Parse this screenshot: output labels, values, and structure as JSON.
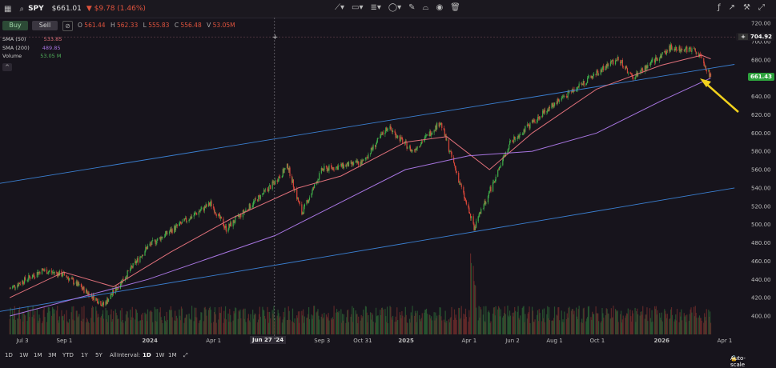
{
  "header": {
    "ticker": "SPY",
    "price": "$661.01",
    "change": "▼ $9.78 (1.46%)"
  },
  "trade": {
    "buy_label": "Buy",
    "sell_label": "Sell"
  },
  "ohlc": {
    "o_label": "O",
    "o": "561.44",
    "h_label": "H",
    "h": "562.33",
    "l_label": "L",
    "l": "555.83",
    "c_label": "C",
    "c": "556.48",
    "v_label": "V",
    "v": "53.05M"
  },
  "legend": [
    {
      "name": "SMA (50)",
      "value": "533.85",
      "color": "#e0707a"
    },
    {
      "name": "SMA (200)",
      "value": "489.85",
      "color": "#a775e0"
    },
    {
      "name": "Volume",
      "value": "53.05 M",
      "color": "#52b35c"
    }
  ],
  "price_axis": {
    "ticks": [
      "720.00",
      "700.00",
      "680.00",
      "660.00",
      "640.00",
      "620.00",
      "600.00",
      "580.00",
      "560.00",
      "540.00",
      "520.00",
      "500.00",
      "480.00",
      "460.00",
      "440.00",
      "420.00",
      "400.00"
    ],
    "crosshair_label": "704.92",
    "last_price_label": "661.43"
  },
  "time_axis": {
    "ticks": [
      "Jul 3",
      "Sep 1",
      "2024",
      "Apr 1",
      "Jun",
      "Sep 3",
      "Oct 31",
      "2025",
      "Apr 1",
      "Jun 2",
      "Aug 1",
      "Oct 1",
      "2026",
      "Apr 1"
    ],
    "crosshair_label": "Jun 27 '24"
  },
  "bottom": {
    "ranges": [
      "1D",
      "1W",
      "1M",
      "3M",
      "YTD",
      "1Y",
      "5Y",
      "All"
    ],
    "interval_label": "Interval:",
    "intervals": [
      "1D",
      "1W",
      "1M"
    ],
    "autoscale_label": "Auto-scale"
  },
  "colors": {
    "up": "#3fae4a",
    "down": "#d9473a",
    "sma50": "#e0707a",
    "sma200": "#a775e0",
    "channel": "#3a7fd0",
    "arrow": "#f2d21d",
    "last_price": "#2da13c"
  },
  "chart_data": {
    "type": "candlestick",
    "x_start": "2023-06",
    "x_end": "2026-04",
    "ylim": [
      390,
      725
    ],
    "price_path": [
      [
        "2023-06-15",
        430
      ],
      [
        "2023-07-31",
        450
      ],
      [
        "2023-09-01",
        445
      ],
      [
        "2023-10-27",
        412
      ],
      [
        "2023-12-29",
        476
      ],
      [
        "2024-03-28",
        523
      ],
      [
        "2024-04-19",
        495
      ],
      [
        "2024-06-27",
        546
      ],
      [
        "2024-07-16",
        564
      ],
      [
        "2024-08-05",
        512
      ],
      [
        "2024-09-03",
        560
      ],
      [
        "2024-10-31",
        568
      ],
      [
        "2024-12-06",
        607
      ],
      [
        "2025-01-10",
        580
      ],
      [
        "2025-02-19",
        612
      ],
      [
        "2025-04-08",
        496
      ],
      [
        "2025-05-30",
        590
      ],
      [
        "2025-07-31",
        632
      ],
      [
        "2025-10-31",
        682
      ],
      [
        "2025-11-20",
        660
      ],
      [
        "2026-01-15",
        694
      ],
      [
        "2026-02-20",
        690
      ],
      [
        "2026-03-12",
        661
      ]
    ],
    "sma50_path": [
      [
        "2023-06-15",
        420
      ],
      [
        "2023-08-31",
        448
      ],
      [
        "2023-11-10",
        432
      ],
      [
        "2024-01-31",
        470
      ],
      [
        "2024-04-30",
        508
      ],
      [
        "2024-07-31",
        540
      ],
      [
        "2024-09-30",
        553
      ],
      [
        "2024-12-31",
        590
      ],
      [
        "2025-02-28",
        596
      ],
      [
        "2025-04-30",
        560
      ],
      [
        "2025-06-30",
        600
      ],
      [
        "2025-09-30",
        648
      ],
      [
        "2025-12-31",
        674
      ],
      [
        "2026-02-27",
        685
      ],
      [
        "2026-03-12",
        681
      ]
    ],
    "sma200_path": [
      [
        "2023-06-15",
        400
      ],
      [
        "2023-12-29",
        440
      ],
      [
        "2024-06-28",
        488
      ],
      [
        "2024-12-31",
        560
      ],
      [
        "2025-03-31",
        575
      ],
      [
        "2025-06-30",
        580
      ],
      [
        "2025-09-30",
        600
      ],
      [
        "2025-12-31",
        635
      ],
      [
        "2026-03-12",
        660
      ]
    ],
    "upper_channel": [
      [
        "2023-06-01",
        545
      ],
      [
        "2026-04-15",
        675
      ]
    ],
    "lower_channel": [
      [
        "2023-06-01",
        405
      ],
      [
        "2026-04-15",
        540
      ]
    ]
  }
}
